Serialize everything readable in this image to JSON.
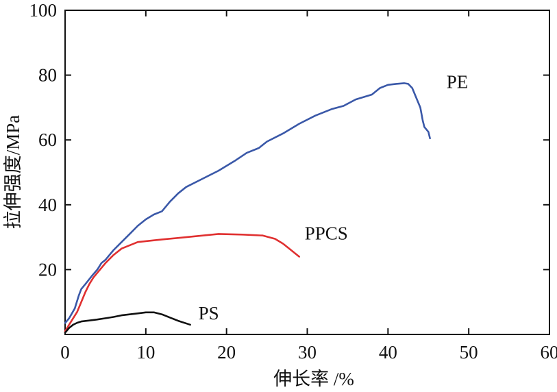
{
  "chart_data": {
    "type": "line",
    "title": "",
    "xlabel": "伸长率 /%",
    "ylabel": "拉伸强度/MPa",
    "xlim": [
      0,
      60
    ],
    "ylim": [
      0,
      100
    ],
    "xticks": [
      0,
      10,
      20,
      30,
      40,
      50,
      60
    ],
    "yticks": [
      20,
      40,
      60,
      80,
      100
    ],
    "grid": false,
    "legend": "inline labels at line ends",
    "series": [
      {
        "name": "PE",
        "color": "#3a58a8",
        "x": [
          0,
          0.5,
          1.2,
          1.7,
          2.0,
          2.5,
          3.3,
          4.0,
          4.5,
          5.0,
          5.5,
          6.0,
          7.0,
          8.0,
          9.0,
          10.0,
          11.0,
          12.0,
          13.0,
          14.0,
          15.0,
          17.0,
          19.0,
          21.0,
          22.5,
          24.0,
          25.0,
          27.0,
          29.0,
          31.0,
          33.0,
          34.5,
          36.0,
          38.0,
          39.0,
          40.0,
          41.0,
          42.0,
          42.5,
          43.0,
          43.5,
          44.0,
          44.3,
          44.5,
          45.0,
          45.2
        ],
        "y": [
          3.5,
          5.0,
          8.0,
          12.0,
          14.0,
          15.5,
          18.0,
          20.0,
          22.0,
          23.0,
          24.5,
          26.0,
          28.5,
          31.0,
          33.5,
          35.5,
          37.0,
          38.0,
          41.0,
          43.5,
          45.5,
          48.0,
          50.5,
          53.5,
          56.0,
          57.5,
          59.5,
          62.0,
          65.0,
          67.5,
          69.5,
          70.5,
          72.5,
          74.0,
          76.0,
          77.0,
          77.3,
          77.5,
          77.3,
          76.0,
          73.0,
          70.0,
          66.0,
          64.0,
          62.5,
          60.5
        ]
      },
      {
        "name": "PPCS",
        "color": "#e03030",
        "x": [
          0,
          0.5,
          1.5,
          2.0,
          2.5,
          3.0,
          3.5,
          4.0,
          5.0,
          6.0,
          7.0,
          9.0,
          12.0,
          15.0,
          19.0,
          22.0,
          24.5,
          26.0,
          27.0,
          28.0,
          29.0
        ],
        "y": [
          1.0,
          3.0,
          7.0,
          10.0,
          13.0,
          15.5,
          17.5,
          19.0,
          22.0,
          24.5,
          26.5,
          28.5,
          29.3,
          30.0,
          31.0,
          30.8,
          30.5,
          29.5,
          28.0,
          26.0,
          24.0
        ]
      },
      {
        "name": "PS",
        "color": "#111111",
        "x": [
          0,
          0.5,
          1.0,
          1.5,
          2.0,
          3.0,
          4.0,
          5.0,
          6.0,
          7.0,
          8.0,
          9.0,
          10.0,
          11.0,
          12.0,
          13.0,
          14.0,
          15.5
        ],
        "y": [
          0.5,
          2.0,
          3.0,
          3.6,
          4.0,
          4.3,
          4.6,
          5.0,
          5.4,
          5.9,
          6.2,
          6.5,
          6.8,
          6.8,
          6.2,
          5.2,
          4.2,
          3.0
        ]
      }
    ]
  }
}
